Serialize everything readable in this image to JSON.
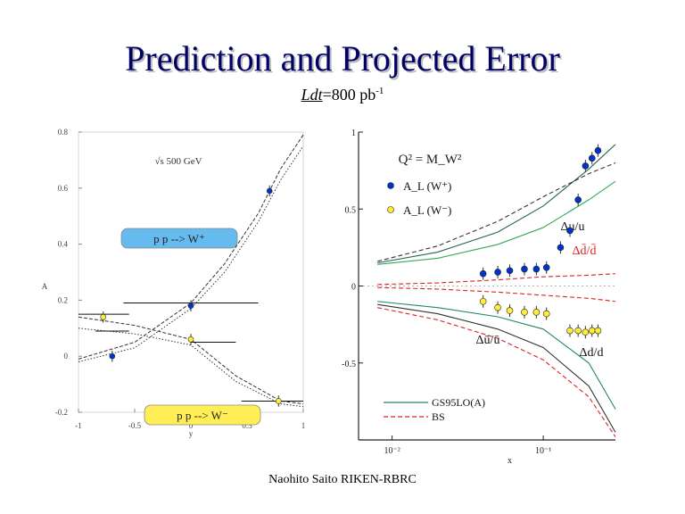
{
  "slide": {
    "title": "Prediction and Projected Error",
    "luminosity": {
      "symbol": "Ldt",
      "value": "=800 pb",
      "exponent": "-1"
    },
    "footer": "Naohito Saito RIKEN-RBRC"
  },
  "colors": {
    "title": "#000066",
    "w_plus_box": "#66bbee",
    "w_minus_box": "#ffee55",
    "w_plus_points": "#0033cc",
    "w_minus_points": "#ffee33",
    "red_curves": "#dd2222",
    "teal_curves": "#228866",
    "green_curve": "#33aa55"
  },
  "chart_data": [
    {
      "type": "line",
      "energy_label": "√s   500 GeV",
      "ylabel": "A",
      "xlabel": "y",
      "xlim": [
        -1,
        1
      ],
      "ylim": [
        -0.2,
        0.8
      ],
      "x_ticks": [
        "-1",
        "-0.5",
        "0",
        "0.5",
        "1"
      ],
      "y_ticks": [
        "-0.2",
        "0",
        "0.2",
        "0.4",
        "0.6",
        "0.8"
      ],
      "boxes": [
        {
          "label": "p p --> W⁺",
          "color": "#66bbee"
        },
        {
          "label": "p p --> W⁻",
          "color": "#ffee55"
        }
      ],
      "series": [
        {
          "name": "W+",
          "x": [
            -0.7,
            0,
            0.7
          ],
          "y": [
            0.0,
            0.18,
            0.59
          ],
          "error": [
            0.02,
            0.02,
            0.02
          ]
        },
        {
          "name": "W-",
          "x": [
            -0.78,
            0,
            0.78
          ],
          "y": [
            0.14,
            0.06,
            -0.16
          ],
          "error": [
            0.02,
            0.02,
            0.02
          ]
        }
      ],
      "curves": [
        {
          "x": [
            -1,
            -0.5,
            0,
            0.3,
            0.6,
            0.8,
            1
          ],
          "y": [
            -0.01,
            0.05,
            0.19,
            0.33,
            0.51,
            0.67,
            0.79
          ]
        },
        {
          "x": [
            -1,
            -0.5,
            0,
            0.3,
            0.6,
            0.8,
            1
          ],
          "y": [
            -0.02,
            0.03,
            0.17,
            0.3,
            0.48,
            0.63,
            0.75
          ]
        },
        {
          "x": [
            -1,
            -0.5,
            0,
            0.4,
            0.8,
            1
          ],
          "y": [
            0.14,
            0.11,
            0.06,
            -0.07,
            -0.16,
            -0.17
          ]
        },
        {
          "x": [
            -1,
            -0.5,
            0,
            0.4,
            0.8,
            1
          ],
          "y": [
            0.1,
            0.08,
            0.04,
            -0.09,
            -0.17,
            -0.18
          ]
        }
      ],
      "horizontal_bars": [
        {
          "x": [
            -1,
            -0.55
          ],
          "y": 0.15
        },
        {
          "x": [
            -0.6,
            0.6
          ],
          "y": 0.19
        },
        {
          "x": [
            -0.85,
            -0.55
          ],
          "y": 0.09
        },
        {
          "x": [
            0,
            0.4
          ],
          "y": 0.05
        },
        {
          "x": [
            0.45,
            1
          ],
          "y": -0.16
        }
      ]
    },
    {
      "type": "line",
      "annotation": "Q² = M_W²",
      "legend": [
        "A_L (W⁺)",
        "A_L (W⁻)"
      ],
      "xlabel": "x",
      "x_scale": "log",
      "xlim": [
        0.006,
        0.3
      ],
      "x_ticks": [
        "10⁻²",
        "10⁻¹"
      ],
      "ylim": [
        -1,
        1
      ],
      "y_ticks": [
        "1",
        "0.5",
        "0",
        "-0.5"
      ],
      "curve_labels": [
        "Δu/u",
        "Δd̄/d̄",
        "Δū/ū",
        "Δd/d"
      ],
      "bottom_legend": [
        {
          "label": "GS95LO(A)",
          "style": "solid"
        },
        {
          "label": "BS",
          "style": "dashed"
        }
      ],
      "series": [
        {
          "name": "A_L (W⁺)",
          "x": [
            0.04,
            0.05,
            0.06,
            0.075,
            0.09,
            0.105,
            0.13,
            0.15,
            0.17,
            0.19,
            0.21,
            0.23
          ],
          "y": [
            0.08,
            0.09,
            0.1,
            0.11,
            0.11,
            0.12,
            0.25,
            0.36,
            0.56,
            0.78,
            0.83,
            0.88
          ]
        },
        {
          "name": "A_L (W⁻)",
          "x": [
            0.04,
            0.05,
            0.06,
            0.075,
            0.09,
            0.105,
            0.15,
            0.17,
            0.19,
            0.21,
            0.23
          ],
          "y": [
            -0.1,
            -0.14,
            -0.16,
            -0.17,
            -0.17,
            -0.18,
            -0.29,
            -0.29,
            -0.3,
            -0.29,
            -0.29
          ]
        }
      ],
      "curves": [
        {
          "style": "solid",
          "x": [
            0.008,
            0.02,
            0.05,
            0.1,
            0.2,
            0.3
          ],
          "y": [
            0.15,
            0.22,
            0.35,
            0.52,
            0.76,
            0.92
          ]
        },
        {
          "style": "dashed",
          "x": [
            0.008,
            0.02,
            0.05,
            0.1,
            0.2,
            0.3
          ],
          "y": [
            0.16,
            0.26,
            0.42,
            0.58,
            0.73,
            0.8
          ]
        },
        {
          "style": "solid",
          "x": [
            0.008,
            0.02,
            0.05,
            0.1,
            0.2,
            0.3
          ],
          "y": [
            0.14,
            0.18,
            0.27,
            0.38,
            0.56,
            0.68
          ]
        },
        {
          "style": "dashed",
          "x": [
            0.008,
            0.02,
            0.05,
            0.1,
            0.2,
            0.3
          ],
          "y": [
            0.01,
            0.02,
            0.04,
            0.06,
            0.07,
            0.08
          ]
        },
        {
          "style": "dashed",
          "x": [
            0.008,
            0.02,
            0.05,
            0.1,
            0.2,
            0.3
          ],
          "y": [
            -0.01,
            -0.02,
            -0.04,
            -0.06,
            -0.08,
            -0.1
          ]
        },
        {
          "style": "solid",
          "x": [
            0.008,
            0.02,
            0.05,
            0.1,
            0.2,
            0.3
          ],
          "y": [
            -0.12,
            -0.18,
            -0.28,
            -0.4,
            -0.65,
            -0.95
          ]
        },
        {
          "style": "dashed",
          "x": [
            0.008,
            0.02,
            0.05,
            0.1,
            0.2,
            0.3
          ],
          "y": [
            -0.14,
            -0.22,
            -0.34,
            -0.48,
            -0.72,
            -0.98
          ]
        },
        {
          "style": "solid",
          "x": [
            0.008,
            0.02,
            0.05,
            0.1,
            0.2,
            0.3
          ],
          "y": [
            -0.1,
            -0.14,
            -0.2,
            -0.28,
            -0.5,
            -0.8
          ]
        }
      ]
    }
  ]
}
